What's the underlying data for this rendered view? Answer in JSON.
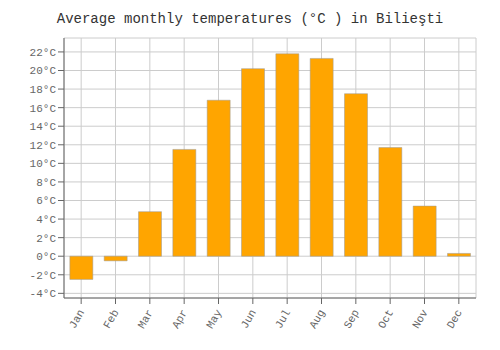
{
  "chart_data": {
    "type": "bar",
    "title": "Average monthly temperatures (°C ) in Bilieşti",
    "categories": [
      "Jan",
      "Feb",
      "Mar",
      "Apr",
      "May",
      "Jun",
      "Jul",
      "Aug",
      "Sep",
      "Oct",
      "Nov",
      "Dec"
    ],
    "values": [
      -2.5,
      -0.5,
      4.8,
      11.5,
      16.8,
      20.2,
      21.8,
      21.3,
      17.5,
      11.7,
      5.4,
      0.3
    ],
    "color": "#FFA500",
    "ylim": [
      -4.5,
      23.5
    ],
    "yticks": [
      {
        "value": -4,
        "label": "-4°C"
      },
      {
        "value": -2,
        "label": "-2°C"
      },
      {
        "value": 0,
        "label": "0°C"
      },
      {
        "value": 2,
        "label": "2°C"
      },
      {
        "value": 4,
        "label": "4°C"
      },
      {
        "value": 6,
        "label": "6°C"
      },
      {
        "value": 8,
        "label": "8°C"
      },
      {
        "value": 10,
        "label": "10°C"
      },
      {
        "value": 12,
        "label": "12°C"
      },
      {
        "value": 14,
        "label": "14°C"
      },
      {
        "value": 16,
        "label": "16°C"
      },
      {
        "value": 18,
        "label": "18°C"
      },
      {
        "value": 20,
        "label": "20°C"
      },
      {
        "value": 22,
        "label": "22°C"
      }
    ],
    "grid": true
  }
}
